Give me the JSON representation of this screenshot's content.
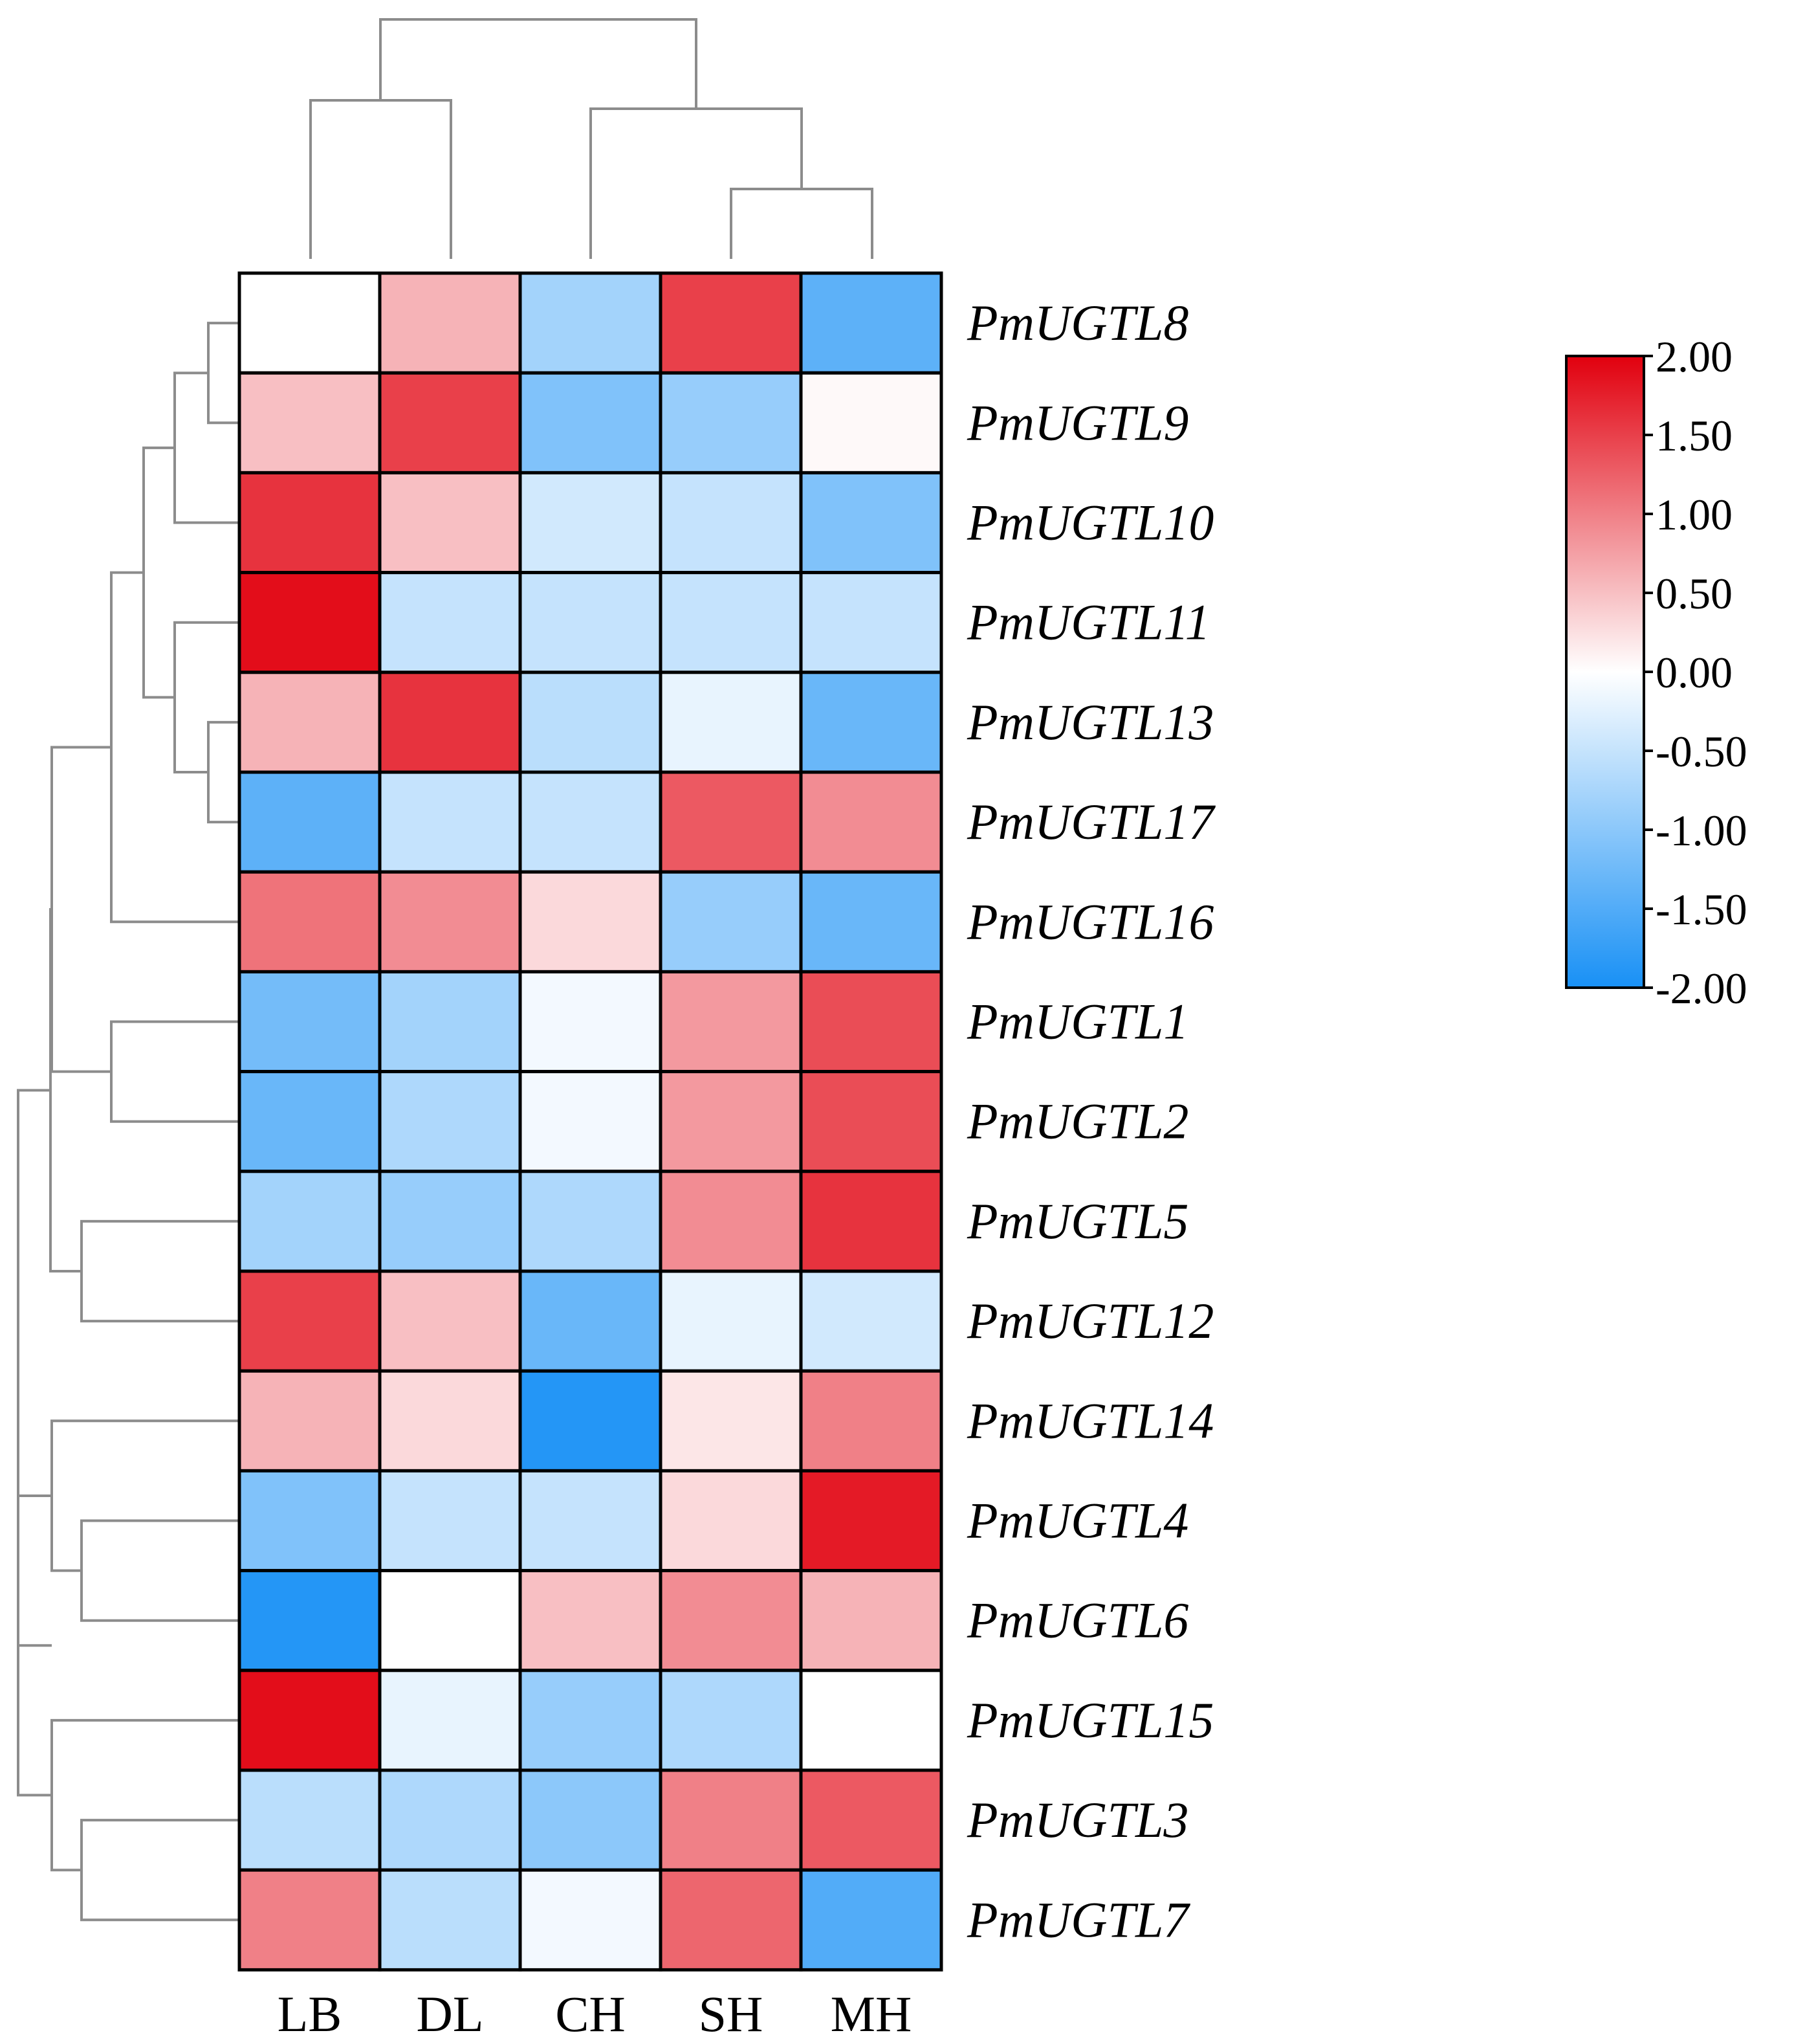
{
  "chart_data": {
    "type": "heatmap",
    "title": "",
    "columns": [
      "LB",
      "DL",
      "CH",
      "SH",
      "MH"
    ],
    "rows": [
      "PmUGTL8",
      "PmUGTL9",
      "PmUGTL10",
      "PmUGTL11",
      "PmUGTL13",
      "PmUGTL17",
      "PmUGTL16",
      "PmUGTL1",
      "PmUGTL2",
      "PmUGTL5",
      "PmUGTL12",
      "PmUGTL14",
      "PmUGTL4",
      "PmUGTL6",
      "PmUGTL15",
      "PmUGTL3",
      "PmUGTL7"
    ],
    "values": [
      [
        0.0,
        0.6,
        -0.8,
        1.5,
        -1.4
      ],
      [
        0.5,
        1.5,
        -1.1,
        -0.9,
        0.05
      ],
      [
        1.6,
        0.5,
        -0.4,
        -0.5,
        -1.1
      ],
      [
        1.9,
        -0.5,
        -0.5,
        -0.5,
        -0.5
      ],
      [
        0.6,
        1.6,
        -0.6,
        -0.2,
        -1.3
      ],
      [
        -1.4,
        -0.5,
        -0.5,
        1.3,
        0.9
      ],
      [
        1.1,
        0.9,
        0.3,
        -0.9,
        -1.3
      ],
      [
        -1.2,
        -0.8,
        -0.1,
        0.8,
        1.4
      ],
      [
        -1.3,
        -0.7,
        -0.1,
        0.8,
        1.4
      ],
      [
        -0.8,
        -0.9,
        -0.7,
        0.9,
        1.6
      ],
      [
        1.5,
        0.5,
        -1.3,
        -0.2,
        -0.4
      ],
      [
        0.6,
        0.3,
        -1.9,
        0.2,
        1.0
      ],
      [
        -1.1,
        -0.5,
        -0.5,
        0.3,
        1.8
      ],
      [
        -1.9,
        0.0,
        0.5,
        0.9,
        0.6
      ],
      [
        1.9,
        -0.2,
        -0.9,
        -0.7,
        0.0
      ],
      [
        -0.6,
        -0.7,
        -1.0,
        1.0,
        1.3
      ],
      [
        1.0,
        -0.6,
        -0.1,
        1.2,
        -1.5
      ]
    ],
    "colorbar": {
      "min": -2.0,
      "max": 2.0,
      "colors": {
        "low": "#1890f5",
        "mid": "#ffffff",
        "high": "#e1000e"
      },
      "ticks": [
        "2.00",
        "1.50",
        "1.00",
        "0.50",
        "0.00",
        "-0.50",
        "-1.00",
        "-1.50",
        "-2.00"
      ],
      "position": "right"
    },
    "dendrograms": {
      "columns": "top",
      "rows": "left",
      "line_color": "#8c8c8c"
    }
  }
}
